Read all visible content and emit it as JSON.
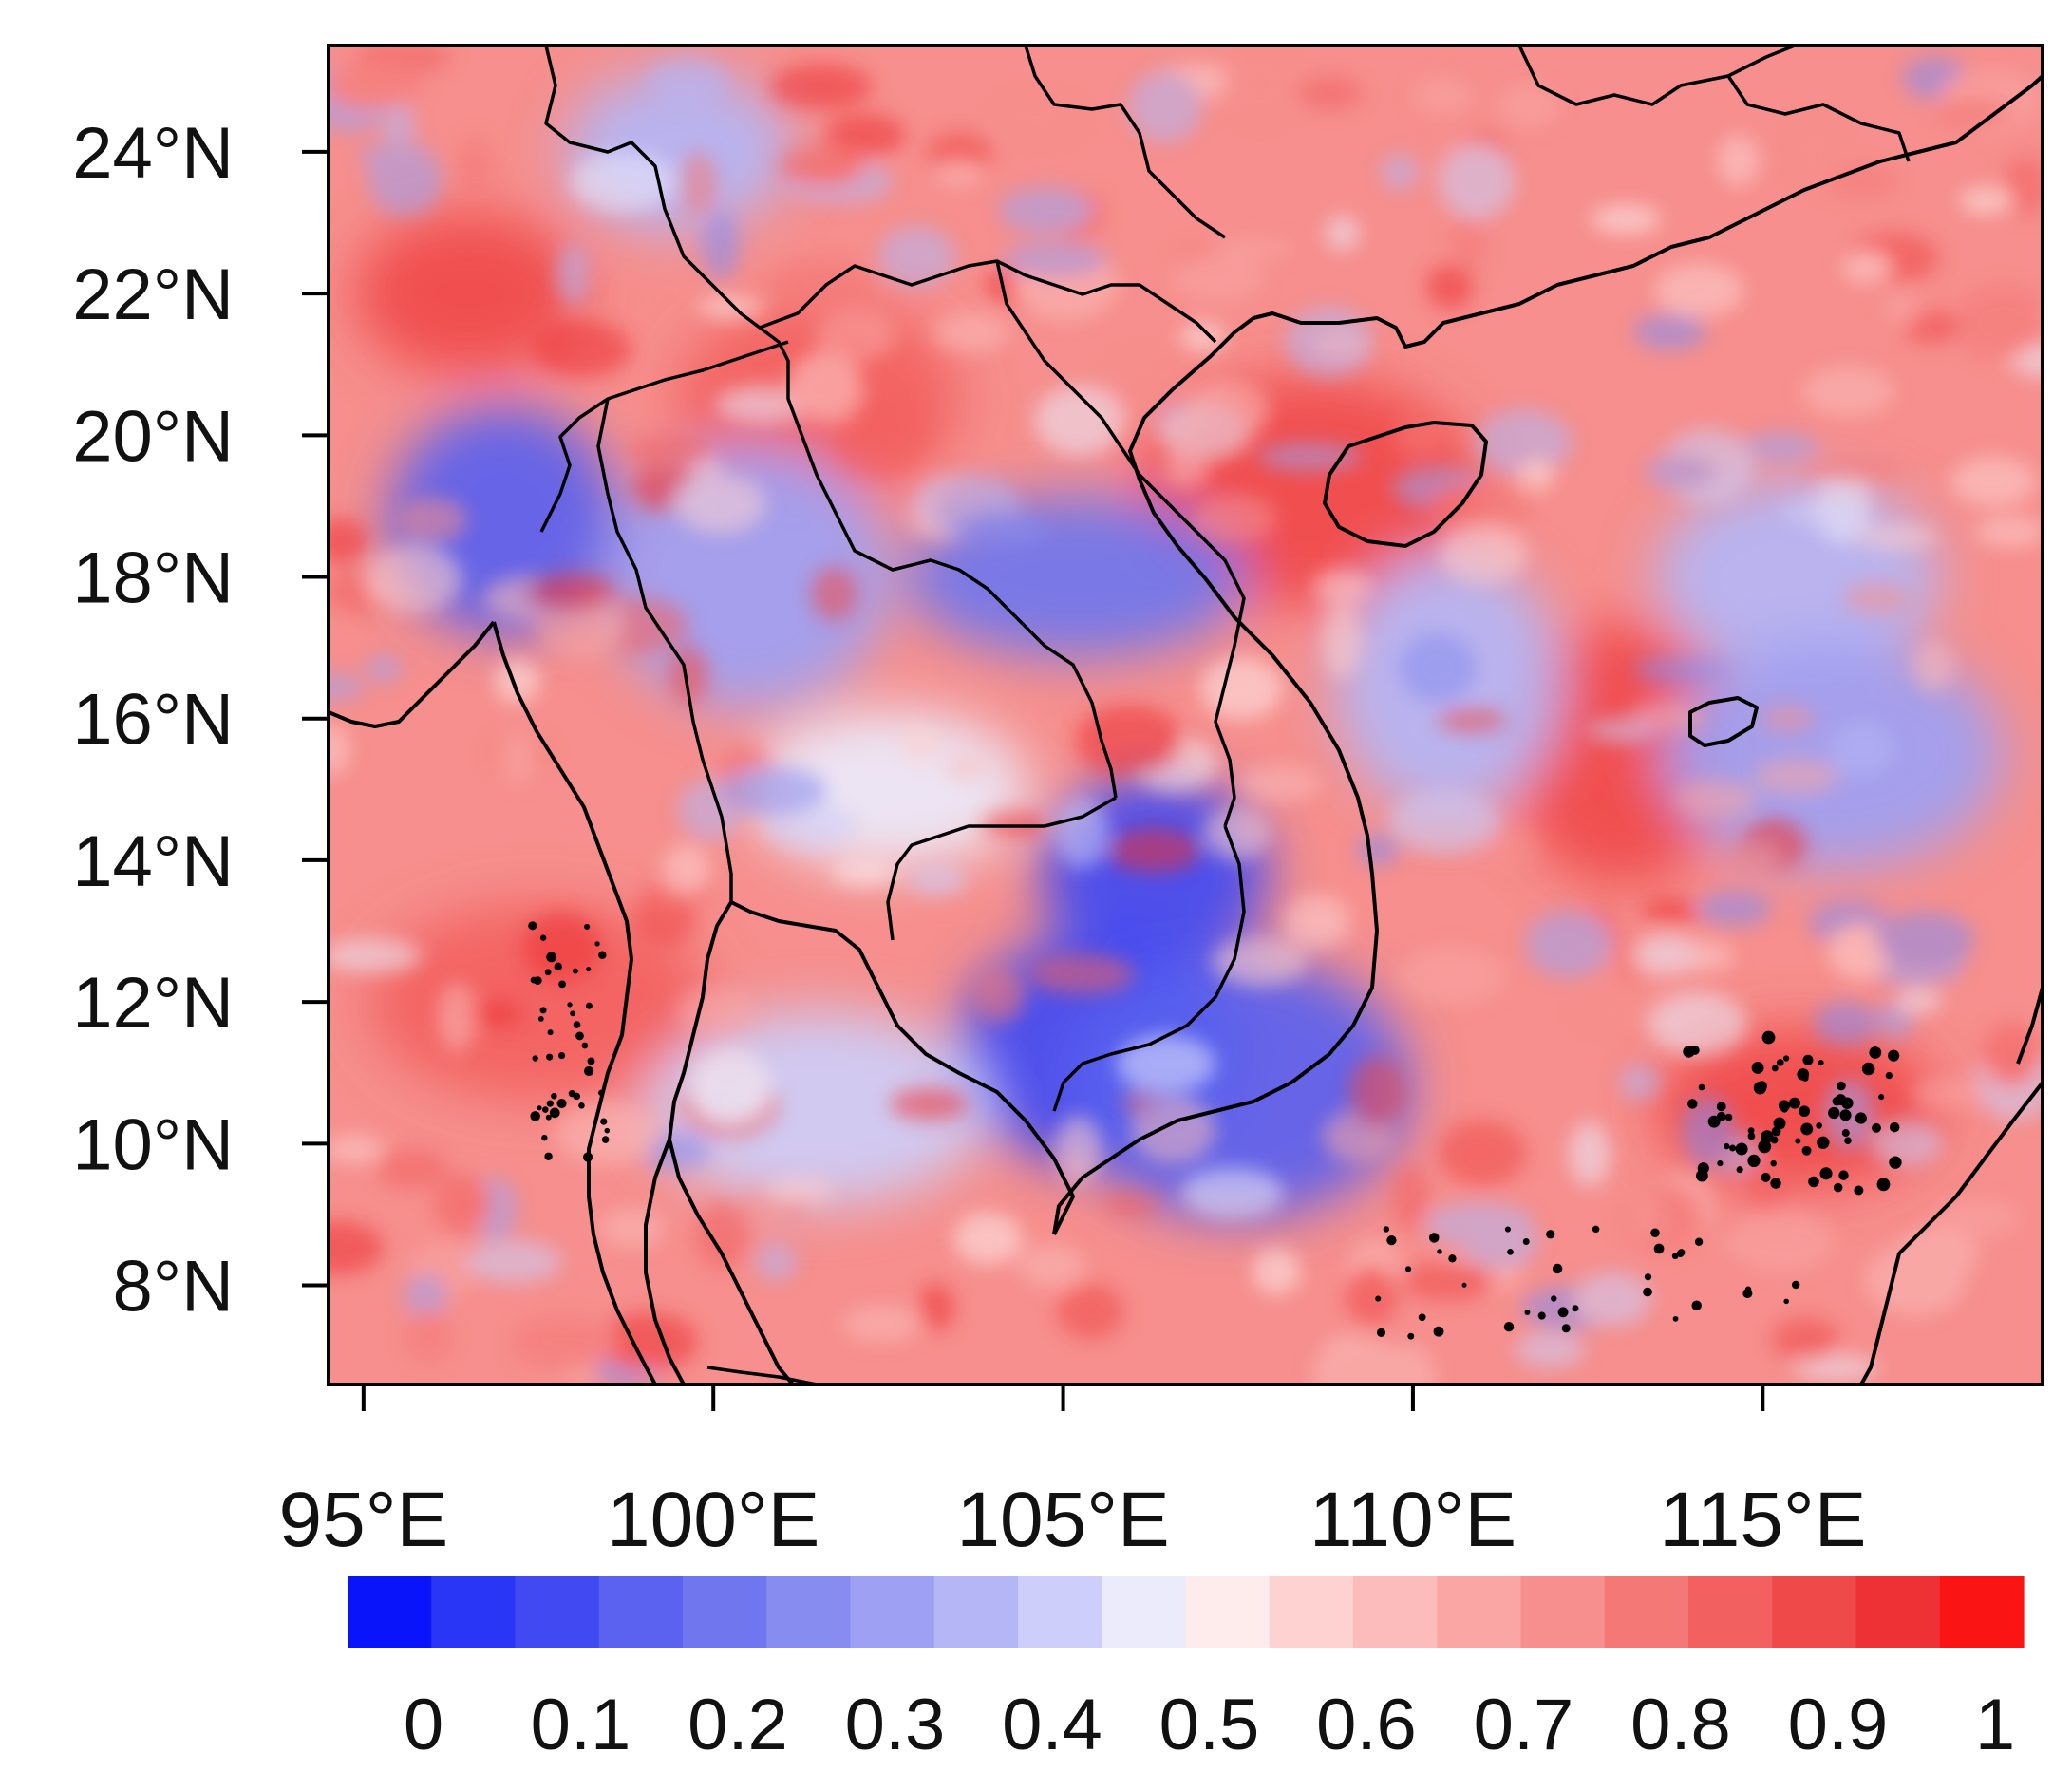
{
  "map": {
    "type": "heatmap",
    "variable_scale": "0 to 1",
    "region": "Southeast Asia / Indochina",
    "lon_range": [
      94.5,
      119
    ],
    "lat_range": [
      6.6,
      25.5
    ],
    "x_ticks": [
      {
        "value": 95,
        "label": "95°E"
      },
      {
        "value": 100,
        "label": "100°E"
      },
      {
        "value": 105,
        "label": "105°E"
      },
      {
        "value": 110,
        "label": "110°E"
      },
      {
        "value": 115,
        "label": "115°E"
      }
    ],
    "y_ticks": [
      {
        "value": 24,
        "label": "24°N"
      },
      {
        "value": 22,
        "label": "22°N"
      },
      {
        "value": 20,
        "label": "20°N"
      },
      {
        "value": 18,
        "label": "18°N"
      },
      {
        "value": 16,
        "label": "16°N"
      },
      {
        "value": 14,
        "label": "14°N"
      },
      {
        "value": 12,
        "label": "12°N"
      },
      {
        "value": 10,
        "label": "10°N"
      },
      {
        "value": 8,
        "label": "8°N"
      }
    ]
  },
  "colorbar": {
    "min": 0,
    "max": 1,
    "step": 0.05,
    "colors": [
      "#0a14fa",
      "#2a36f5",
      "#4149f2",
      "#5a62ef",
      "#6f76ee",
      "#878cf0",
      "#9ea1f3",
      "#b4b6f6",
      "#cdcef9",
      "#ebebfc",
      "#fdeceb",
      "#fdd2d1",
      "#fbbcbb",
      "#f9a6a4",
      "#f68f8d",
      "#f47876",
      "#f26160",
      "#f0494a",
      "#ee3134",
      "#fa1414"
    ],
    "labels": [
      "0",
      "0.1",
      "0.2",
      "0.3",
      "0.4",
      "0.5",
      "0.6",
      "0.7",
      "0.8",
      "0.9",
      "1"
    ]
  },
  "field_blobs": {
    "description": "approximate pattern of values: background ~0.7",
    "background_value": 0.7,
    "anomalies": [
      {
        "lon": 96.5,
        "lat": 22.0,
        "value": 0.85
      },
      {
        "lon": 101.5,
        "lat": 20.5,
        "value": 0.83
      },
      {
        "lon": 108.5,
        "lat": 19.2,
        "value": 0.85
      },
      {
        "lon": 113.0,
        "lat": 15.5,
        "value": 0.86
      },
      {
        "lon": 115.5,
        "lat": 10.5,
        "value": 0.85
      },
      {
        "lon": 97.5,
        "lat": 12.0,
        "value": 0.83
      },
      {
        "lon": 97.0,
        "lat": 18.8,
        "value": 0.15
      },
      {
        "lon": 100.5,
        "lat": 18.0,
        "value": 0.3
      },
      {
        "lon": 105.2,
        "lat": 18.0,
        "value": 0.2
      },
      {
        "lon": 106.3,
        "lat": 13.8,
        "value": 0.1
      },
      {
        "lon": 105.5,
        "lat": 11.3,
        "value": 0.12
      },
      {
        "lon": 107.5,
        "lat": 10.8,
        "value": 0.15
      },
      {
        "lon": 99.5,
        "lat": 24.0,
        "value": 0.35
      },
      {
        "lon": 115.5,
        "lat": 18.0,
        "value": 0.35
      },
      {
        "lon": 116.0,
        "lat": 15.5,
        "value": 0.3
      },
      {
        "lon": 110.5,
        "lat": 16.5,
        "value": 0.35
      },
      {
        "lon": 102.5,
        "lat": 15.0,
        "value": 0.45
      },
      {
        "lon": 101.5,
        "lat": 10.5,
        "value": 0.4
      }
    ]
  }
}
